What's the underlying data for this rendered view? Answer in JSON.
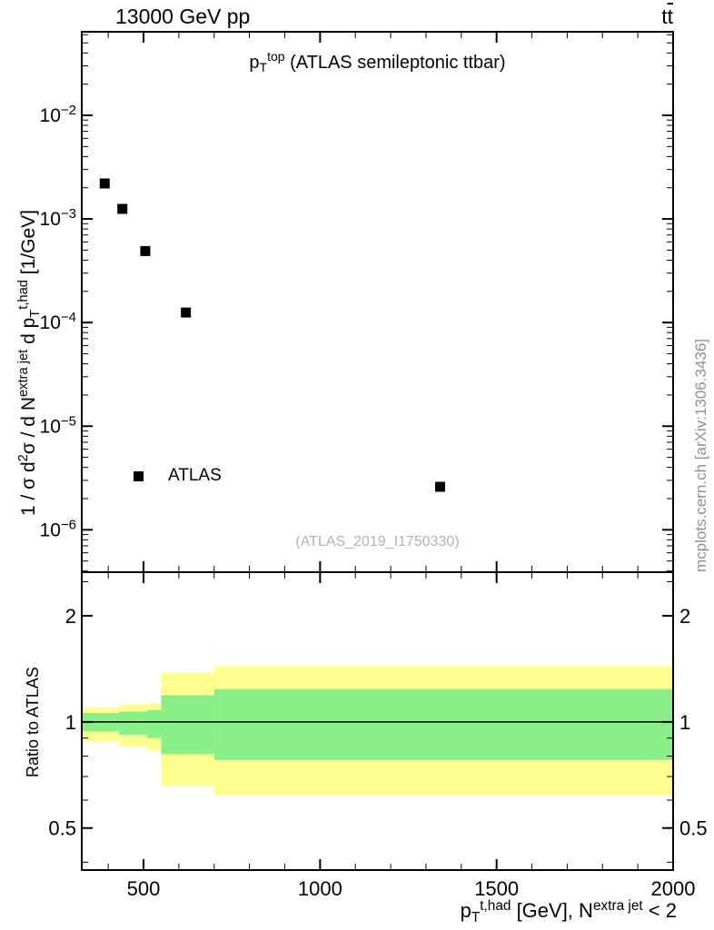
{
  "chart_data": {
    "type": "scatter",
    "header": {
      "left": "13000 GeV pp",
      "right_rich": [
        {
          "t": "t"
        },
        {
          "t": "t",
          "s": "over"
        }
      ]
    },
    "panel_title_rich": [
      {
        "t": "p"
      },
      {
        "t": "T",
        "s": "sub"
      },
      {
        "t": "top",
        "s": "sup"
      },
      {
        "t": " (ATLAS semileptonic ttbar)"
      }
    ],
    "watermark": "(ATLAS_2019_I1750330)",
    "side_note": "mcplots.cern.ch [arXiv:1306.3436]",
    "legend": {
      "label": "ATLAS"
    },
    "x": {
      "min": 325,
      "max": 2000,
      "major_ticks": [
        500,
        1000,
        1500,
        2000
      ],
      "minor_step": 100,
      "label_rich": [
        {
          "t": "p"
        },
        {
          "t": "T",
          "s": "sub"
        },
        {
          "t": "t,had",
          "s": "sup"
        },
        {
          "t": " [GeV], N"
        },
        {
          "t": "extra jet",
          "s": "sup"
        },
        {
          "t": " < 2"
        }
      ]
    },
    "main_axis": {
      "scale": "log",
      "min": 3.9e-07,
      "max": 0.064,
      "labeled_decades": [
        -2,
        -3,
        -4,
        -5,
        -6
      ],
      "ylabel_rich": [
        {
          "t": "1 / σ d"
        },
        {
          "t": "2",
          "s": "sup"
        },
        {
          "t": "σ / d N"
        },
        {
          "t": "extra jet",
          "s": "sup"
        },
        {
          "t": " d p"
        },
        {
          "t": "T",
          "s": "sub"
        },
        {
          "t": "t,had",
          "s": "sup"
        },
        {
          "t": " [1/GeV]"
        }
      ]
    },
    "series": [
      {
        "name": "ATLAS",
        "marker": "filled-square",
        "color": "#000000",
        "points": [
          [
            390,
            0.0022
          ],
          [
            440,
            0.00125
          ],
          [
            505,
            0.00049
          ],
          [
            620,
            0.000125
          ],
          [
            1340,
            2.6e-06
          ]
        ]
      }
    ],
    "ratio_axis": {
      "label": "Ratio to ATLAS",
      "scale": "log",
      "min": 0.38,
      "max": 2.66,
      "major_ticks": [
        0.5,
        1,
        2
      ],
      "minor_ticks": [
        0.4,
        0.6,
        0.7,
        0.8,
        0.9,
        2.5
      ]
    },
    "ratio_reference": 1,
    "bands": [
      {
        "x0": 325,
        "x1": 430,
        "yellow": [
          0.88,
          1.1
        ],
        "green": [
          0.94,
          1.06
        ]
      },
      {
        "x0": 430,
        "x1": 510,
        "yellow": [
          0.85,
          1.12
        ],
        "green": [
          0.92,
          1.07
        ]
      },
      {
        "x0": 510,
        "x1": 550,
        "yellow": [
          0.83,
          1.13
        ],
        "green": [
          0.9,
          1.08
        ]
      },
      {
        "x0": 550,
        "x1": 700,
        "yellow": [
          0.66,
          1.38
        ],
        "green": [
          0.81,
          1.19
        ]
      },
      {
        "x0": 700,
        "x1": 2000,
        "yellow": [
          0.62,
          1.44
        ],
        "green": [
          0.78,
          1.24
        ]
      }
    ],
    "colors": {
      "yellow": "#ffff8f",
      "green": "#89ef89",
      "frame": "#000000",
      "side_note_gray": "#8f8f8f",
      "watermark_gray": "#b2b2b2"
    }
  }
}
